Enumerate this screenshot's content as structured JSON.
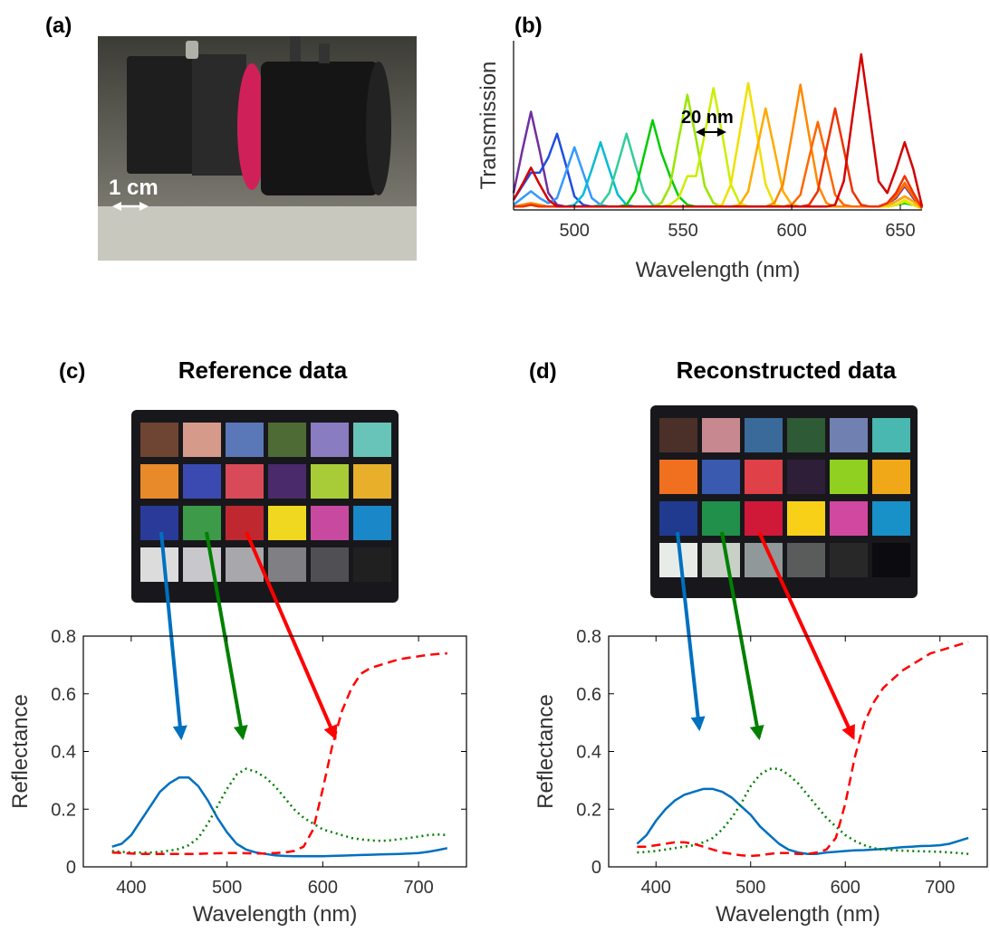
{
  "photo": {
    "label": "(a)",
    "scale_label": "1 cm"
  },
  "chart_data": [
    {
      "type": "line",
      "panel_label": "(b)",
      "xlabel": "Wavelength (nm)",
      "ylabel": "Transmission",
      "annotation": "20 nm",
      "xlim": [
        472,
        660
      ],
      "xticks": [
        500,
        550,
        600,
        650
      ],
      "ylim": [
        0,
        100
      ],
      "box": false,
      "x": [
        472,
        476,
        480,
        484,
        488,
        492,
        496,
        500,
        504,
        508,
        512,
        516,
        520,
        524,
        528,
        532,
        536,
        540,
        544,
        548,
        552,
        556,
        560,
        564,
        568,
        572,
        576,
        580,
        584,
        588,
        592,
        596,
        600,
        604,
        608,
        612,
        616,
        620,
        624,
        628,
        632,
        636,
        640,
        644,
        648,
        652,
        656,
        660
      ],
      "series": [
        {
          "color": "#7030a0",
          "style": "solid",
          "values": [
            10,
            35,
            58,
            35,
            10,
            3,
            2,
            2,
            2,
            2,
            2,
            2,
            2,
            2,
            2,
            2,
            2,
            2,
            2,
            2,
            2,
            2,
            2,
            2,
            2,
            2,
            2,
            2,
            2,
            2,
            2,
            2,
            2,
            2,
            2,
            2,
            2,
            2,
            2,
            2,
            2,
            2,
            2,
            4,
            7,
            14,
            7,
            1
          ]
        },
        {
          "color": "#1f4fe0",
          "style": "solid",
          "values": [
            6,
            14,
            22,
            22,
            31,
            45,
            27,
            8,
            3,
            2,
            2,
            2,
            2,
            2,
            2,
            2,
            2,
            2,
            2,
            2,
            2,
            2,
            2,
            2,
            2,
            2,
            2,
            2,
            2,
            2,
            2,
            2,
            2,
            2,
            2,
            2,
            2,
            2,
            2,
            2,
            2,
            2,
            2,
            3,
            5,
            8,
            5,
            1
          ]
        },
        {
          "color": "#3399ff",
          "style": "solid",
          "values": [
            3,
            7,
            11,
            7,
            4,
            7,
            22,
            37,
            22,
            7,
            3,
            2,
            2,
            2,
            2,
            2,
            2,
            2,
            2,
            2,
            2,
            2,
            2,
            2,
            2,
            2,
            2,
            2,
            2,
            2,
            2,
            2,
            2,
            2,
            2,
            2,
            2,
            2,
            2,
            2,
            2,
            2,
            2,
            2,
            3,
            5,
            3,
            1
          ]
        },
        {
          "color": "#00bcd4",
          "style": "solid",
          "values": [
            2,
            3,
            4,
            3,
            2,
            2,
            2,
            3,
            9,
            24,
            40,
            24,
            9,
            3,
            2,
            2,
            2,
            2,
            2,
            2,
            2,
            2,
            2,
            2,
            2,
            2,
            2,
            2,
            2,
            2,
            2,
            2,
            2,
            2,
            2,
            2,
            2,
            2,
            2,
            2,
            2,
            2,
            2,
            2,
            3,
            4,
            3,
            1
          ]
        },
        {
          "color": "#33cc99",
          "style": "solid",
          "values": [
            2,
            2,
            3,
            2,
            2,
            2,
            2,
            2,
            2,
            2,
            3,
            10,
            27,
            45,
            27,
            10,
            3,
            2,
            2,
            2,
            2,
            2,
            2,
            2,
            2,
            2,
            2,
            2,
            2,
            2,
            2,
            2,
            2,
            2,
            2,
            2,
            2,
            2,
            2,
            2,
            2,
            2,
            2,
            2,
            3,
            4,
            3,
            1
          ]
        },
        {
          "color": "#00cc00",
          "style": "solid",
          "values": [
            2,
            2,
            3,
            2,
            2,
            2,
            2,
            2,
            2,
            2,
            2,
            2,
            2,
            3,
            11,
            32,
            53,
            34,
            20,
            8,
            3,
            2,
            2,
            2,
            2,
            2,
            2,
            2,
            2,
            2,
            2,
            2,
            2,
            2,
            2,
            2,
            2,
            2,
            2,
            2,
            2,
            2,
            2,
            2,
            3,
            4,
            3,
            1
          ]
        },
        {
          "color": "#99e600",
          "style": "solid",
          "values": [
            2,
            2,
            3,
            2,
            2,
            2,
            2,
            2,
            2,
            2,
            2,
            2,
            2,
            2,
            2,
            2,
            2,
            4,
            14,
            42,
            68,
            42,
            14,
            4,
            2,
            2,
            2,
            2,
            2,
            2,
            2,
            2,
            2,
            2,
            2,
            2,
            2,
            2,
            2,
            2,
            2,
            2,
            2,
            2,
            3,
            5,
            3,
            1
          ]
        },
        {
          "color": "#ccee00",
          "style": "solid",
          "values": [
            2,
            2,
            3,
            2,
            2,
            2,
            2,
            2,
            2,
            2,
            2,
            2,
            2,
            2,
            2,
            2,
            2,
            2,
            3,
            7,
            20,
            20,
            45,
            72,
            45,
            15,
            4,
            2,
            2,
            2,
            2,
            2,
            2,
            2,
            2,
            2,
            2,
            2,
            2,
            2,
            2,
            2,
            2,
            2,
            3,
            5,
            3,
            1
          ]
        },
        {
          "color": "#f0e000",
          "style": "solid",
          "values": [
            2,
            2,
            3,
            2,
            2,
            2,
            2,
            2,
            2,
            2,
            2,
            2,
            2,
            2,
            2,
            2,
            2,
            2,
            2,
            2,
            2,
            2,
            2,
            2,
            3,
            15,
            45,
            75,
            45,
            15,
            3,
            2,
            2,
            2,
            2,
            2,
            2,
            2,
            2,
            2,
            2,
            2,
            2,
            2,
            3,
            6,
            3,
            1
          ]
        },
        {
          "color": "#ffaa00",
          "style": "solid",
          "values": [
            2,
            2,
            3,
            2,
            2,
            2,
            2,
            2,
            2,
            2,
            2,
            2,
            2,
            2,
            2,
            2,
            2,
            2,
            2,
            2,
            2,
            2,
            2,
            2,
            2,
            2,
            3,
            11,
            36,
            60,
            36,
            11,
            3,
            2,
            2,
            2,
            2,
            2,
            2,
            2,
            2,
            2,
            2,
            3,
            5,
            8,
            5,
            1
          ]
        },
        {
          "color": "#ff8800",
          "style": "solid",
          "values": [
            2,
            3,
            4,
            3,
            2,
            2,
            2,
            2,
            2,
            2,
            2,
            2,
            2,
            2,
            2,
            2,
            2,
            2,
            2,
            2,
            2,
            2,
            2,
            2,
            2,
            2,
            2,
            2,
            2,
            2,
            4,
            15,
            44,
            74,
            44,
            15,
            4,
            2,
            2,
            2,
            2,
            2,
            2,
            4,
            8,
            15,
            8,
            1
          ]
        },
        {
          "color": "#ff6600",
          "style": "solid",
          "values": [
            2,
            2,
            3,
            2,
            2,
            2,
            2,
            2,
            2,
            2,
            2,
            2,
            2,
            2,
            2,
            2,
            2,
            2,
            2,
            2,
            2,
            2,
            2,
            2,
            2,
            2,
            2,
            2,
            2,
            2,
            2,
            2,
            3,
            9,
            31,
            52,
            31,
            9,
            3,
            2,
            2,
            2,
            2,
            4,
            8,
            16,
            8,
            1
          ]
        },
        {
          "color": "#ee3300",
          "style": "solid",
          "values": [
            2,
            2,
            3,
            2,
            2,
            2,
            2,
            2,
            2,
            2,
            2,
            2,
            2,
            2,
            2,
            2,
            2,
            2,
            2,
            2,
            2,
            2,
            2,
            2,
            2,
            2,
            2,
            2,
            2,
            2,
            2,
            2,
            2,
            2,
            3,
            11,
            36,
            60,
            36,
            11,
            3,
            2,
            2,
            4,
            10,
            20,
            10,
            1
          ]
        },
        {
          "color": "#d40000",
          "style": "solid",
          "values": [
            6,
            15,
            25,
            15,
            6,
            2,
            2,
            2,
            2,
            2,
            2,
            2,
            2,
            2,
            2,
            2,
            2,
            2,
            2,
            2,
            2,
            2,
            2,
            2,
            2,
            2,
            2,
            2,
            2,
            2,
            2,
            2,
            2,
            2,
            2,
            2,
            2,
            3,
            17,
            55,
            92,
            55,
            17,
            10,
            24,
            40,
            24,
            2
          ]
        }
      ]
    },
    {
      "type": "line",
      "panel_label": "(c)",
      "title": "Reference data",
      "xlabel": "Wavelength (nm)",
      "ylabel": "Reflectance",
      "xlim": [
        350,
        750
      ],
      "xticks": [
        400,
        500,
        600,
        700
      ],
      "ylim": [
        0,
        0.8
      ],
      "yticks": [
        0,
        0.2,
        0.4,
        0.6,
        0.8
      ],
      "box": true,
      "x": [
        380,
        390,
        400,
        410,
        420,
        430,
        440,
        450,
        460,
        470,
        480,
        490,
        500,
        510,
        520,
        530,
        540,
        550,
        560,
        570,
        580,
        590,
        600,
        610,
        620,
        630,
        640,
        650,
        660,
        670,
        680,
        690,
        700,
        710,
        720,
        730
      ],
      "series": [
        {
          "color": "#0070c0",
          "style": "solid",
          "values": [
            0.07,
            0.08,
            0.11,
            0.16,
            0.21,
            0.26,
            0.29,
            0.31,
            0.31,
            0.28,
            0.23,
            0.17,
            0.12,
            0.08,
            0.06,
            0.05,
            0.045,
            0.04,
            0.038,
            0.037,
            0.037,
            0.037,
            0.037,
            0.038,
            0.039,
            0.04,
            0.041,
            0.042,
            0.043,
            0.044,
            0.045,
            0.046,
            0.048,
            0.052,
            0.058,
            0.065
          ]
        },
        {
          "color": "#008000",
          "style": "dotted",
          "values": [
            0.055,
            0.052,
            0.05,
            0.05,
            0.05,
            0.052,
            0.056,
            0.062,
            0.075,
            0.1,
            0.15,
            0.21,
            0.27,
            0.32,
            0.34,
            0.33,
            0.31,
            0.28,
            0.24,
            0.2,
            0.17,
            0.15,
            0.13,
            0.12,
            0.11,
            0.1,
            0.095,
            0.092,
            0.09,
            0.092,
            0.096,
            0.1,
            0.105,
            0.11,
            0.112,
            0.11
          ]
        },
        {
          "color": "#ff0000",
          "style": "dashed",
          "values": [
            0.05,
            0.048,
            0.046,
            0.045,
            0.045,
            0.045,
            0.045,
            0.045,
            0.045,
            0.045,
            0.046,
            0.047,
            0.048,
            0.048,
            0.047,
            0.046,
            0.046,
            0.048,
            0.05,
            0.055,
            0.07,
            0.13,
            0.27,
            0.42,
            0.54,
            0.62,
            0.67,
            0.69,
            0.7,
            0.71,
            0.72,
            0.725,
            0.73,
            0.735,
            0.738,
            0.74
          ]
        }
      ]
    },
    {
      "type": "line",
      "panel_label": "(d)",
      "title": "Reconstructed data",
      "xlabel": "Wavelength (nm)",
      "ylabel": "Reflectance",
      "xlim": [
        350,
        750
      ],
      "xticks": [
        400,
        500,
        600,
        700
      ],
      "ylim": [
        0,
        0.8
      ],
      "yticks": [
        0,
        0.2,
        0.4,
        0.6,
        0.8
      ],
      "box": true,
      "x": [
        380,
        390,
        400,
        410,
        420,
        430,
        440,
        450,
        460,
        470,
        480,
        490,
        500,
        510,
        520,
        530,
        540,
        550,
        560,
        570,
        580,
        590,
        600,
        610,
        620,
        630,
        640,
        650,
        660,
        670,
        680,
        690,
        700,
        710,
        720,
        730
      ],
      "series": [
        {
          "color": "#0070c0",
          "style": "solid",
          "values": [
            0.08,
            0.11,
            0.16,
            0.2,
            0.23,
            0.25,
            0.26,
            0.27,
            0.27,
            0.26,
            0.24,
            0.21,
            0.18,
            0.14,
            0.11,
            0.08,
            0.06,
            0.05,
            0.045,
            0.045,
            0.05,
            0.052,
            0.055,
            0.057,
            0.058,
            0.06,
            0.062,
            0.065,
            0.068,
            0.07,
            0.072,
            0.073,
            0.075,
            0.08,
            0.09,
            0.1
          ]
        },
        {
          "color": "#008000",
          "style": "dotted",
          "values": [
            0.05,
            0.052,
            0.055,
            0.06,
            0.065,
            0.07,
            0.075,
            0.085,
            0.1,
            0.13,
            0.17,
            0.22,
            0.28,
            0.32,
            0.34,
            0.34,
            0.32,
            0.29,
            0.25,
            0.21,
            0.17,
            0.14,
            0.11,
            0.09,
            0.075,
            0.065,
            0.06,
            0.058,
            0.056,
            0.055,
            0.054,
            0.053,
            0.052,
            0.05,
            0.048,
            0.045
          ]
        },
        {
          "color": "#ff0000",
          "style": "dashed",
          "values": [
            0.07,
            0.07,
            0.075,
            0.08,
            0.085,
            0.085,
            0.08,
            0.07,
            0.06,
            0.05,
            0.045,
            0.04,
            0.038,
            0.04,
            0.045,
            0.048,
            0.048,
            0.045,
            0.045,
            0.05,
            0.06,
            0.1,
            0.22,
            0.38,
            0.5,
            0.57,
            0.62,
            0.65,
            0.68,
            0.7,
            0.72,
            0.74,
            0.75,
            0.76,
            0.77,
            0.78
          ]
        }
      ]
    }
  ]
}
